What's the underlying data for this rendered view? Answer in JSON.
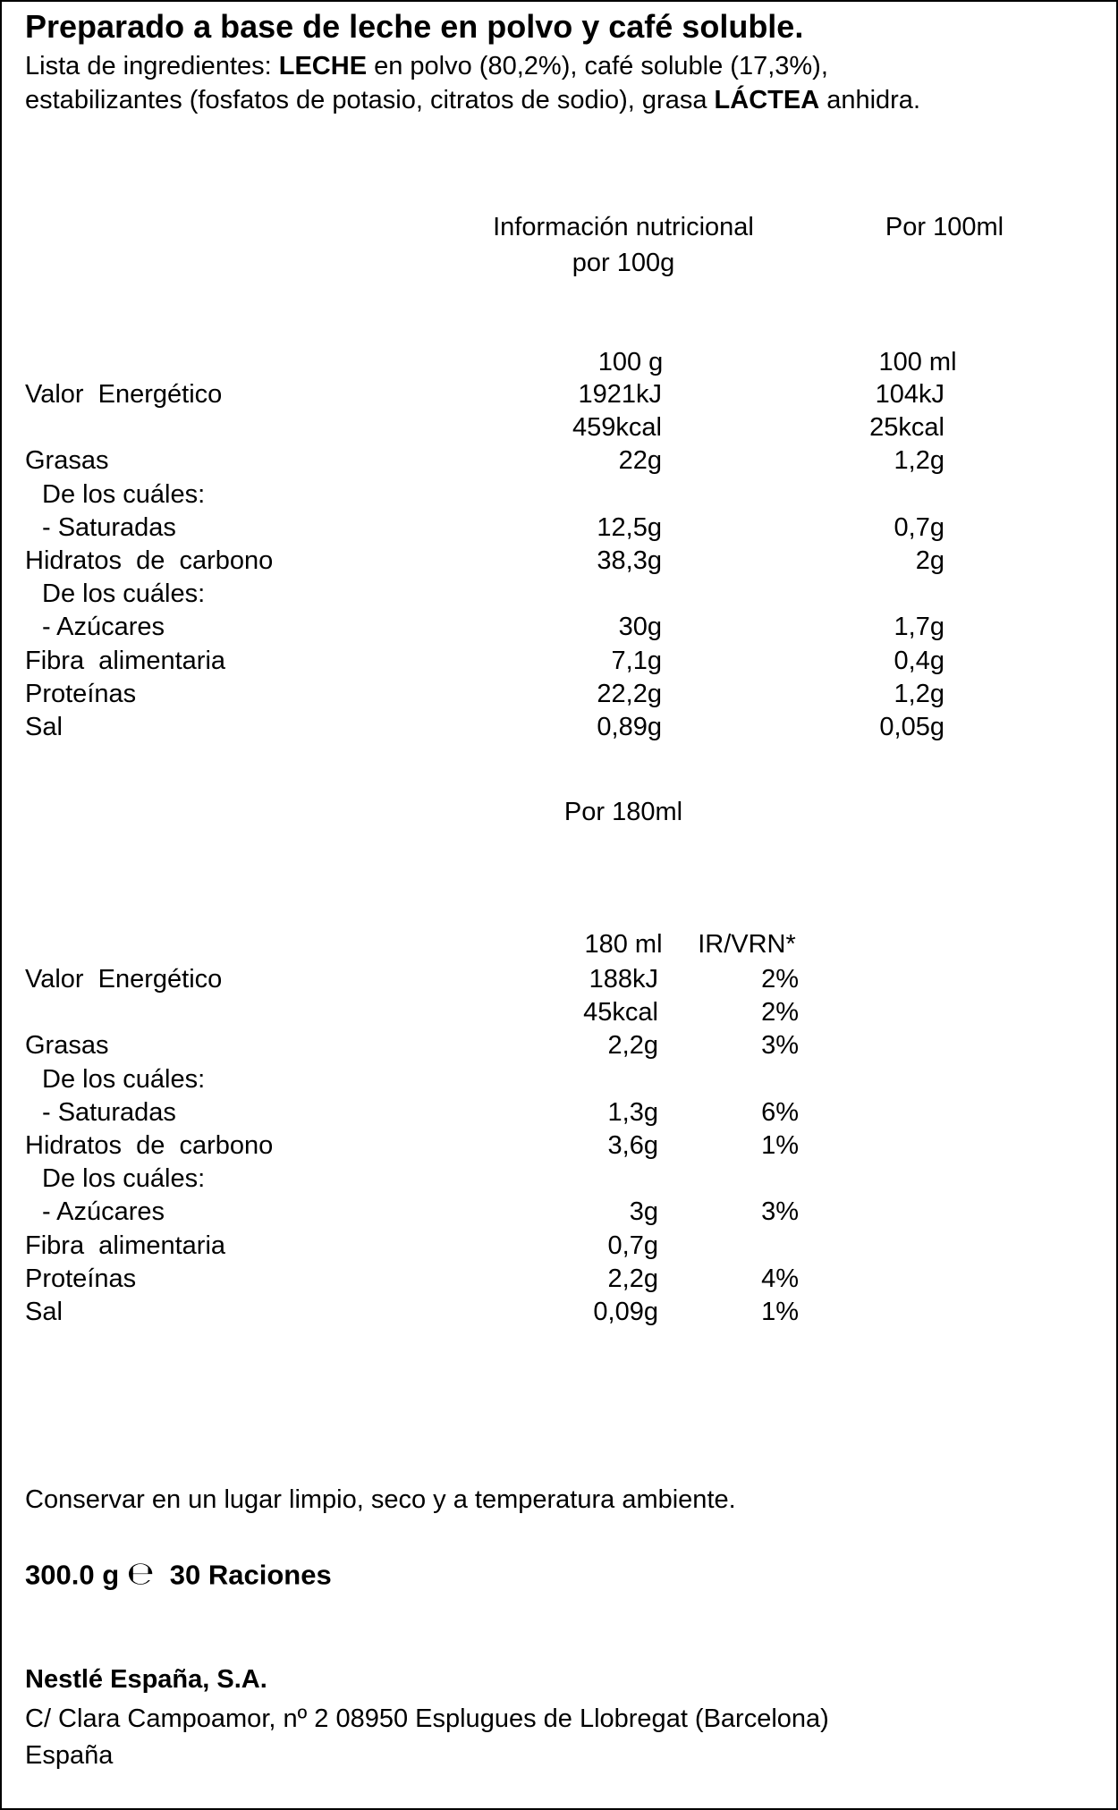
{
  "title": "Preparado a base de leche en polvo y café soluble.",
  "ingredients": {
    "intro": "Lista de ingredientes: ",
    "milk": "LECHE",
    "middle": " en polvo (80,2%), café soluble (17,3%),",
    "rest": "estabilizantes (fosfatos de potasio, citratos de sodio), grasa ",
    "dairy": "LÁCTEA",
    "end": " anhidra."
  },
  "table1": {
    "heading": [
      "Información nutricional",
      "por 100g"
    ],
    "heading2": "Por 100ml",
    "units": [
      "100 g",
      "100 ml"
    ],
    "rows": [
      {
        "label": "Valor  Energético",
        "cells": [
          "1921kJ",
          "104kJ"
        ],
        "kcal_cells": [
          "459kcal",
          "25kcal"
        ]
      },
      {
        "label": "Grasas",
        "cells": [
          "22g",
          "1,2g"
        ],
        "detail": {
          "heading": "De los cuáles:",
          "label": "- Saturadas",
          "cells": [
            "12,5g",
            "0,7g"
          ]
        }
      },
      {
        "label": "Hidratos  de  carbono",
        "cells": [
          "38,3g",
          "2g"
        ],
        "detail": {
          "heading": "De los cuáles:",
          "label": "- Azúcares",
          "cells": [
            "30g",
            "1,7g"
          ]
        }
      },
      {
        "label": "Fibra  alimentaria",
        "cells": [
          "7,1g",
          "0,4g"
        ]
      },
      {
        "label": "Proteínas",
        "cells": [
          "22,2g",
          "1,2g"
        ]
      },
      {
        "label": "Sal",
        "cells": [
          "0,89g",
          "0,05g"
        ]
      }
    ]
  },
  "table2": {
    "heading": "Por 180ml",
    "units": [
      "180 ml",
      "IR/VRN*"
    ],
    "rows": [
      {
        "label": "Valor  Energético",
        "cells": [
          "188kJ",
          "2%"
        ],
        "kcal_cells": [
          "45kcal",
          "2%"
        ]
      },
      {
        "label": "Grasas",
        "cells": [
          "2,2g",
          "3%"
        ],
        "detail": {
          "heading": "De los cuáles:",
          "label": "- Saturadas",
          "cells": [
            "1,3g",
            "6%"
          ]
        }
      },
      {
        "label": "Hidratos  de  carbono",
        "cells": [
          "3,6g",
          "1%"
        ],
        "detail": {
          "heading": "De los cuáles:",
          "label": "- Azúcares",
          "cells": [
            "3g",
            "3%"
          ]
        }
      },
      {
        "label": "Fibra  alimentaria",
        "cells": [
          "0,7g"
        ]
      },
      {
        "label": "Proteínas",
        "cells": [
          "2,2g",
          "4%"
        ]
      },
      {
        "label": "Sal",
        "cells": [
          "0,09g",
          "1%"
        ]
      }
    ]
  },
  "storage": "Conservar en un lugar limpio, seco y a temperatura ambiente.",
  "quantity": {
    "weight": "300.0 g",
    "estimated_sign": "℮",
    "servings": "30 Raciones"
  },
  "company": {
    "name": "Nestlé España, S.A.",
    "address": "C/ Clara Campoamor, nº 2 08950 Esplugues de Llobregat (Barcelona)",
    "country": "España"
  }
}
